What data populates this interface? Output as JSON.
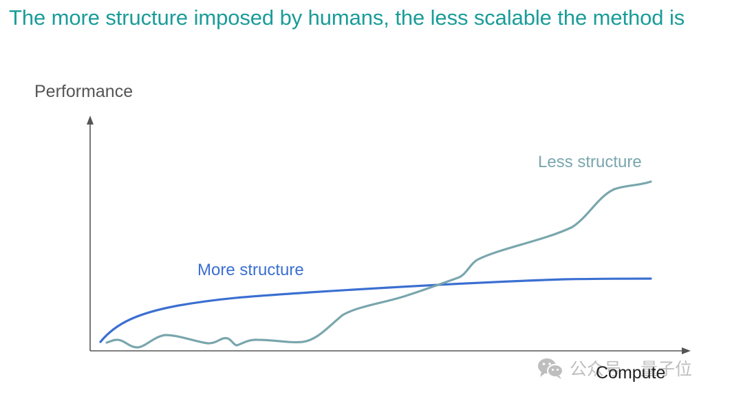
{
  "slide": {
    "title": "The more structure imposed by humans, the less scalable the method is",
    "title_color": "#1a9c98"
  },
  "diagram": {
    "y_axis_label": "Performance",
    "x_axis_label": "Compute",
    "series": [
      {
        "name": "More structure",
        "color": "#3b6fd1",
        "shape": "concave-saturating"
      },
      {
        "name": "Less structure",
        "color": "#79a6ad",
        "shape": "noisy-flat-then-rising"
      }
    ]
  },
  "watermark": {
    "icon": "wechat-icon",
    "text_left": "公众号",
    "text_right": "量子位",
    "color": "#8a8a8a"
  }
}
